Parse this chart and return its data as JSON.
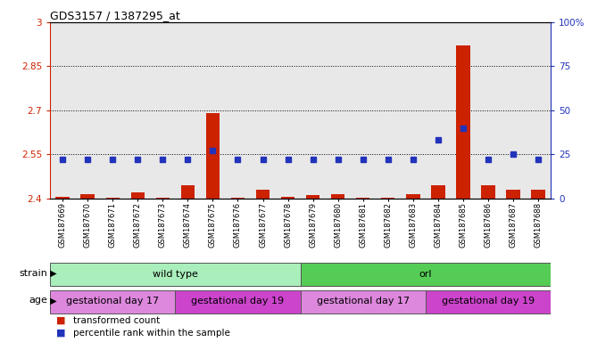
{
  "title": "GDS3157 / 1387295_at",
  "samples": [
    "GSM187669",
    "GSM187670",
    "GSM187671",
    "GSM187672",
    "GSM187673",
    "GSM187674",
    "GSM187675",
    "GSM187676",
    "GSM187677",
    "GSM187678",
    "GSM187679",
    "GSM187680",
    "GSM187681",
    "GSM187682",
    "GSM187683",
    "GSM187684",
    "GSM187685",
    "GSM187686",
    "GSM187687",
    "GSM187688"
  ],
  "red_values": [
    2.405,
    2.415,
    2.403,
    2.42,
    2.403,
    2.445,
    2.69,
    2.403,
    2.43,
    2.405,
    2.41,
    2.415,
    2.403,
    2.403,
    2.415,
    2.445,
    2.92,
    2.445,
    2.43,
    2.43
  ],
  "blue_values": [
    22,
    22,
    22,
    22,
    22,
    22,
    27,
    22,
    22,
    22,
    22,
    22,
    22,
    22,
    22,
    33,
    40,
    22,
    25,
    22
  ],
  "ylim_left": [
    2.4,
    3.0
  ],
  "ylim_right": [
    0,
    100
  ],
  "yticks_left": [
    2.4,
    2.55,
    2.7,
    2.85,
    3.0
  ],
  "yticks_right": [
    0,
    25,
    50,
    75,
    100
  ],
  "ytick_labels_left": [
    "2.4",
    "2.55",
    "2.7",
    "2.85",
    "3"
  ],
  "ytick_labels_right": [
    "0",
    "25",
    "50",
    "75",
    "100%"
  ],
  "hlines": [
    2.55,
    2.7,
    2.85
  ],
  "red_color": "#cc2200",
  "blue_color": "#2233bb",
  "bar_bottom": 2.4,
  "strain_groups": [
    {
      "label": "wild type",
      "start": 0,
      "end": 10,
      "color": "#aaeebb"
    },
    {
      "label": "orl",
      "start": 10,
      "end": 20,
      "color": "#55cc55"
    }
  ],
  "age_groups": [
    {
      "label": "gestational day 17",
      "start": 0,
      "end": 5,
      "color": "#dd88dd"
    },
    {
      "label": "gestational day 19",
      "start": 5,
      "end": 10,
      "color": "#cc44cc"
    },
    {
      "label": "gestational day 17",
      "start": 10,
      "end": 15,
      "color": "#dd88dd"
    },
    {
      "label": "gestational day 19",
      "start": 15,
      "end": 20,
      "color": "#cc44cc"
    }
  ],
  "legend_items": [
    {
      "label": "transformed count",
      "color": "#cc2200",
      "marker": "s"
    },
    {
      "label": "percentile rank within the sample",
      "color": "#2233bb",
      "marker": "s"
    }
  ],
  "strain_label": "strain",
  "age_label": "age",
  "col_bg": "#e8e8e8"
}
